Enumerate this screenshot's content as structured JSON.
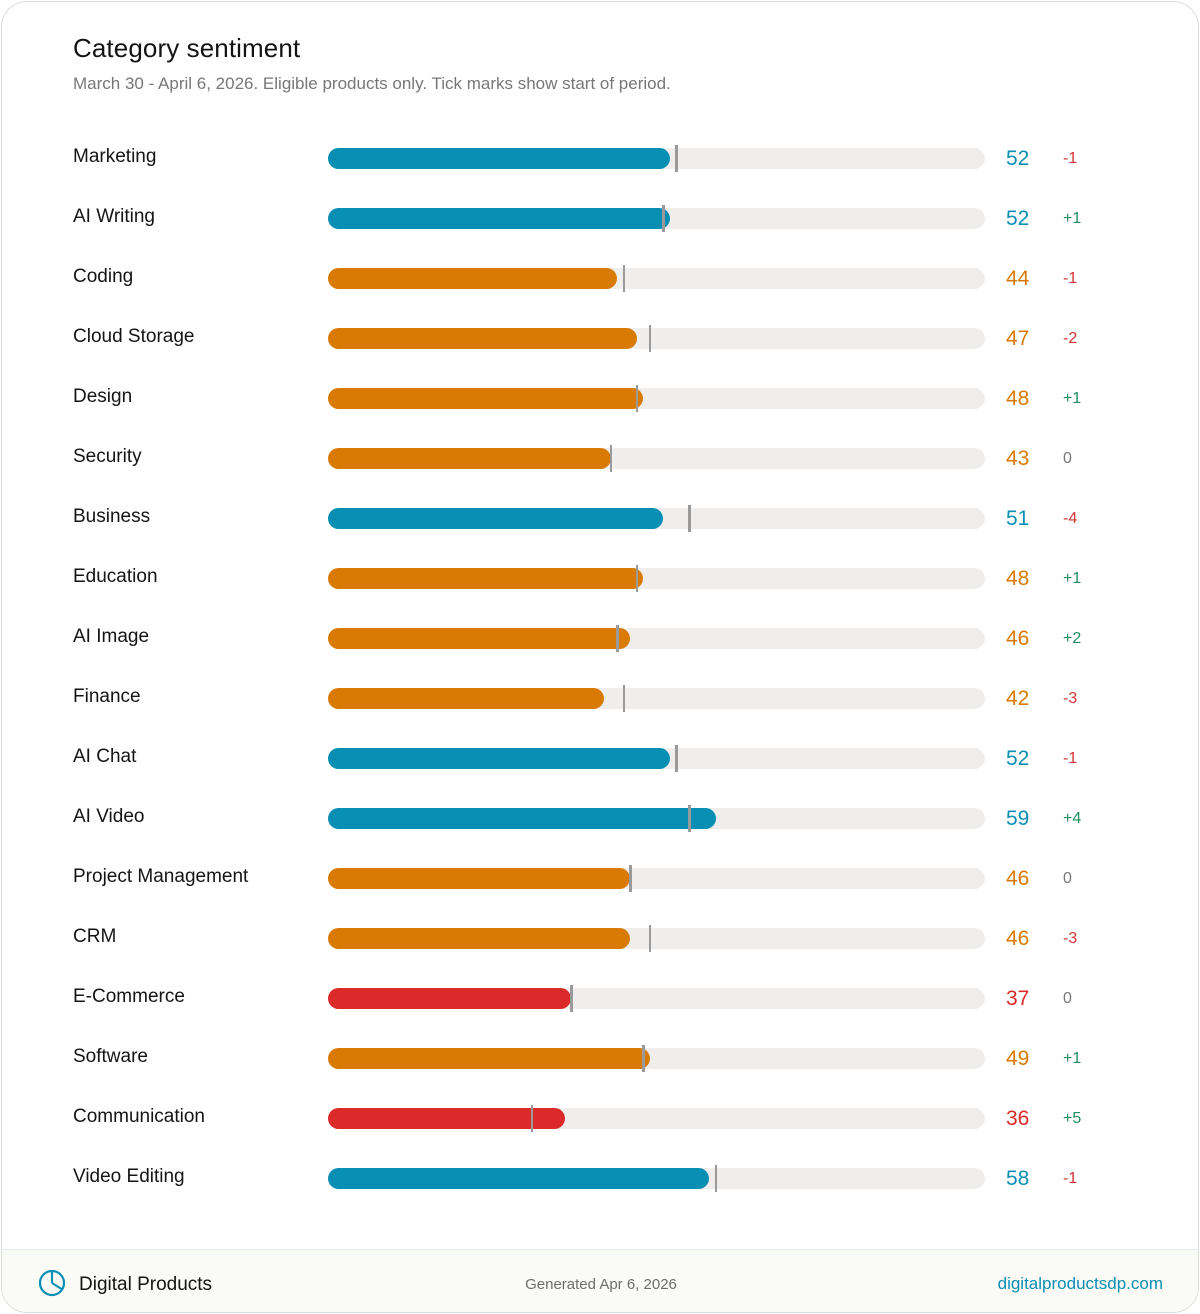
{
  "chart_data": {
    "type": "bar",
    "orientation": "horizontal",
    "title": "Category sentiment",
    "subtitle": "March 30 - April 6, 2026. Eligible products only. Tick marks show start of period.",
    "xlim": [
      0,
      100
    ],
    "grid": false,
    "categories": [
      "Marketing",
      "AI Writing",
      "Coding",
      "Cloud Storage",
      "Design",
      "Security",
      "Business",
      "Education",
      "AI Image",
      "Finance",
      "AI Chat",
      "AI Video",
      "Project Management",
      "CRM",
      "E-Commerce",
      "Software",
      "Communication",
      "Video Editing"
    ],
    "values": [
      52,
      52,
      44,
      47,
      48,
      43,
      51,
      48,
      46,
      42,
      52,
      59,
      46,
      46,
      37,
      49,
      36,
      58
    ],
    "start_values": [
      53,
      51,
      45,
      49,
      47,
      43,
      55,
      47,
      44,
      45,
      53,
      55,
      46,
      49,
      37,
      48,
      31,
      59
    ],
    "changes": [
      "-1",
      "+1",
      "-1",
      "-2",
      "+1",
      "0",
      "-4",
      "+1",
      "+2",
      "-3",
      "-1",
      "+4",
      "0",
      "-3",
      "0",
      "+1",
      "+5",
      "-1"
    ],
    "color_thresholds": {
      "high_min": 50,
      "mid_min": 40
    },
    "colors": {
      "high": "#0a8fb4",
      "mid": "#d97a04",
      "low": "#dc2a2a",
      "change_up": "#1f8f5f",
      "change_down": "#d23434",
      "change_flat": "#777777",
      "track": "#efeeec",
      "tick": "#9a9a9a"
    }
  },
  "footer": {
    "brand": "Digital Products",
    "generated": "Generated Apr 6, 2026",
    "site": "digitalproductsdp.com",
    "logo_icon": "pie-chart-icon"
  }
}
